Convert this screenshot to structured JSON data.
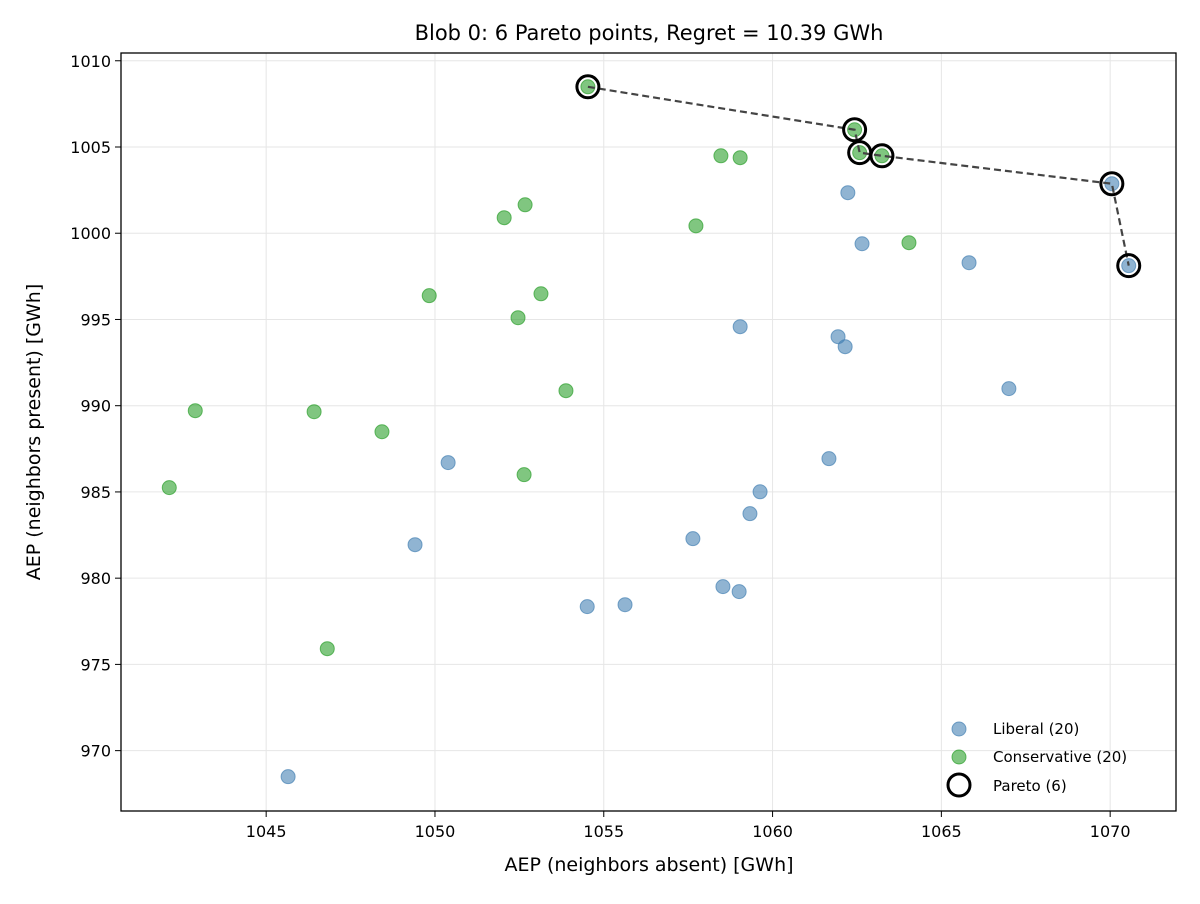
{
  "chart_data": {
    "type": "scatter",
    "title": "Blob 0: 6 Pareto points, Regret = 10.39 GWh",
    "xlabel": "AEP (neighbors absent) [GWh]",
    "ylabel": "AEP (neighbors present) [GWh]",
    "xlim": [
      1040.7,
      1071.95
    ],
    "ylim": [
      966.5,
      1010.45
    ],
    "xticks": [
      1045,
      1050,
      1055,
      1060,
      1065,
      1070
    ],
    "yticks": [
      970,
      975,
      980,
      985,
      990,
      995,
      1000,
      1005,
      1010
    ],
    "grid": true,
    "legend_position": "bottom-right",
    "series": [
      {
        "name": "Liberal (20)",
        "color": "#4682b4",
        "marker": "filled-circle",
        "points": [
          [
            1062.23,
            1002.35
          ],
          [
            1062.65,
            999.39
          ],
          [
            1065.82,
            998.29
          ],
          [
            1059.04,
            994.58
          ],
          [
            1061.94,
            994.0
          ],
          [
            1062.15,
            993.42
          ],
          [
            1067.0,
            990.99
          ],
          [
            1050.39,
            986.7
          ],
          [
            1061.67,
            986.93
          ],
          [
            1059.63,
            985.01
          ],
          [
            1059.33,
            983.74
          ],
          [
            1049.41,
            981.94
          ],
          [
            1057.64,
            982.29
          ],
          [
            1058.53,
            979.51
          ],
          [
            1059.01,
            979.22
          ],
          [
            1054.51,
            978.35
          ],
          [
            1055.63,
            978.46
          ],
          [
            1045.65,
            968.49
          ],
          [
            1070.05,
            1002.87
          ],
          [
            1070.55,
            998.12
          ]
        ]
      },
      {
        "name": "Conservative (20)",
        "color": "#2ca02c",
        "marker": "filled-circle",
        "points": [
          [
            1054.53,
            1008.49
          ],
          [
            1062.43,
            1006.0
          ],
          [
            1062.58,
            1004.67
          ],
          [
            1063.24,
            1004.49
          ],
          [
            1058.47,
            1004.49
          ],
          [
            1059.04,
            1004.38
          ],
          [
            1052.67,
            1001.65
          ],
          [
            1052.05,
            1000.9
          ],
          [
            1057.73,
            1000.43
          ],
          [
            1064.04,
            999.45
          ],
          [
            1049.83,
            996.38
          ],
          [
            1053.14,
            996.49
          ],
          [
            1052.46,
            995.1
          ],
          [
            1053.88,
            990.87
          ],
          [
            1042.9,
            989.71
          ],
          [
            1046.42,
            989.65
          ],
          [
            1048.43,
            988.49
          ],
          [
            1052.64,
            986.0
          ],
          [
            1042.13,
            985.25
          ],
          [
            1046.81,
            975.91
          ]
        ]
      },
      {
        "name": "Pareto (6)",
        "color": "#000000",
        "marker": "open-circle",
        "line": "dashed",
        "line_color": "#444444",
        "points": [
          [
            1054.53,
            1008.49
          ],
          [
            1062.43,
            1006.0
          ],
          [
            1062.58,
            1004.67
          ],
          [
            1063.24,
            1004.49
          ],
          [
            1070.05,
            1002.87
          ],
          [
            1070.55,
            998.12
          ]
        ]
      }
    ]
  }
}
